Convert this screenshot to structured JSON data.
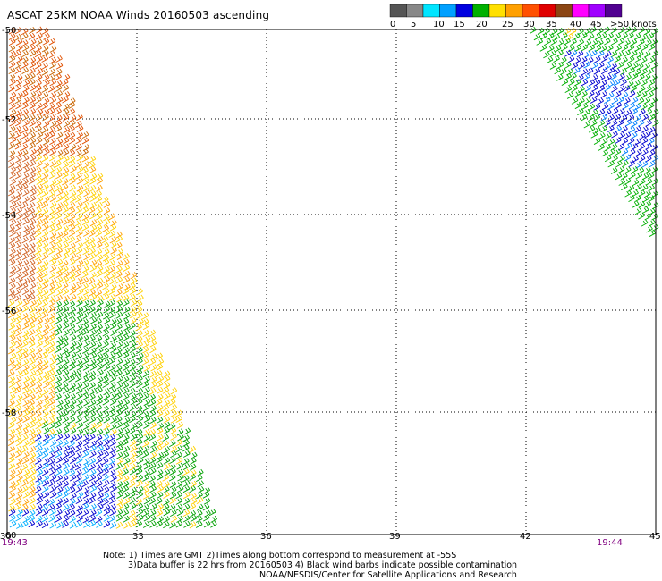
{
  "title": "ASCAT 25KM NOAA Winds 20160503 ascending",
  "scale": {
    "labels": [
      "0",
      "5",
      "10",
      "15",
      "20",
      "25",
      "30",
      "35",
      "40",
      "45",
      ">50 knots"
    ],
    "colors": [
      "#555555",
      "#888888",
      "#00e5ff",
      "#00a0ff",
      "#0000e0",
      "#00b000",
      "#ffe000",
      "#ffa000",
      "#ff5000",
      "#e00000",
      "#8b4513",
      "#ff00ff",
      "#a000ff",
      "#500090"
    ]
  },
  "axes": {
    "lat_labels": [
      "-50",
      "-52",
      "-54",
      "-56",
      "-58",
      "-60"
    ],
    "lon_labels": [
      "30",
      "33",
      "36",
      "39",
      "42",
      "45"
    ]
  },
  "times": {
    "left": "19:43",
    "right": "19:44"
  },
  "notes": {
    "line1": "Note: 1) Times are GMT 2)Times along bottom correspond to measurement at -55S",
    "line2": "3)Data buffer is 22 hrs from 20160503 4) Black wind barbs indicate possible contamination",
    "line3": "NOAA/NESDIS/Center for Satellite Applications and Research"
  }
}
